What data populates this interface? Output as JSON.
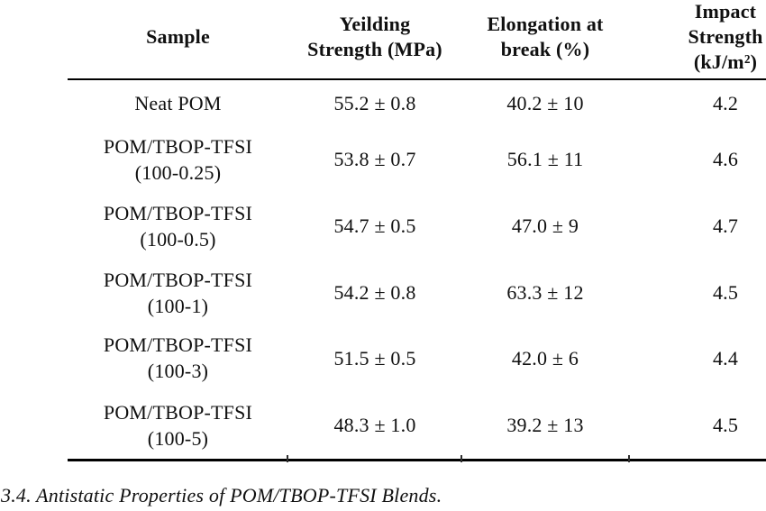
{
  "colors": {
    "background": "#ffffff",
    "text": "#101010",
    "rule": "#000000"
  },
  "table": {
    "headers": [
      {
        "id": "sample",
        "label": "Sample"
      },
      {
        "id": "yielding-strength",
        "label": "Yeilding\nStrength (MPa)"
      },
      {
        "id": "elongation",
        "label": "Elongation at\nbreak (%)"
      },
      {
        "id": "impact-strength",
        "label": "Impact\nStrength\n(kJ/m²)"
      }
    ],
    "rows": [
      {
        "sample": "Neat POM",
        "yielding_strength": "55.2 ± 0.8",
        "elongation": "40.2 ± 10",
        "impact_strength": "4.2"
      },
      {
        "sample": "POM/TBOP-TFSI\n(100-0.25)",
        "yielding_strength": "53.8 ± 0.7",
        "elongation": "56.1 ± 11",
        "impact_strength": "4.6"
      },
      {
        "sample": "POM/TBOP-TFSI\n(100-0.5)",
        "yielding_strength": "54.7 ± 0.5",
        "elongation": "47.0 ± 9",
        "impact_strength": "4.7"
      },
      {
        "sample": "POM/TBOP-TFSI\n(100-1)",
        "yielding_strength": "54.2 ± 0.8",
        "elongation": "63.3 ± 12",
        "impact_strength": "4.5"
      },
      {
        "sample": "POM/TBOP-TFSI\n(100-3)",
        "yielding_strength": "51.5 ± 0.5",
        "elongation": "42.0 ± 6",
        "impact_strength": "4.4"
      },
      {
        "sample": "POM/TBOP-TFSI\n(100-5)",
        "yielding_strength": "48.3 ± 1.0",
        "elongation": "39.2 ± 13",
        "impact_strength": "4.5"
      }
    ]
  },
  "caption": {
    "section_text": "3.4. Antistatic Properties of POM/TBOP-TFSI Blends."
  }
}
